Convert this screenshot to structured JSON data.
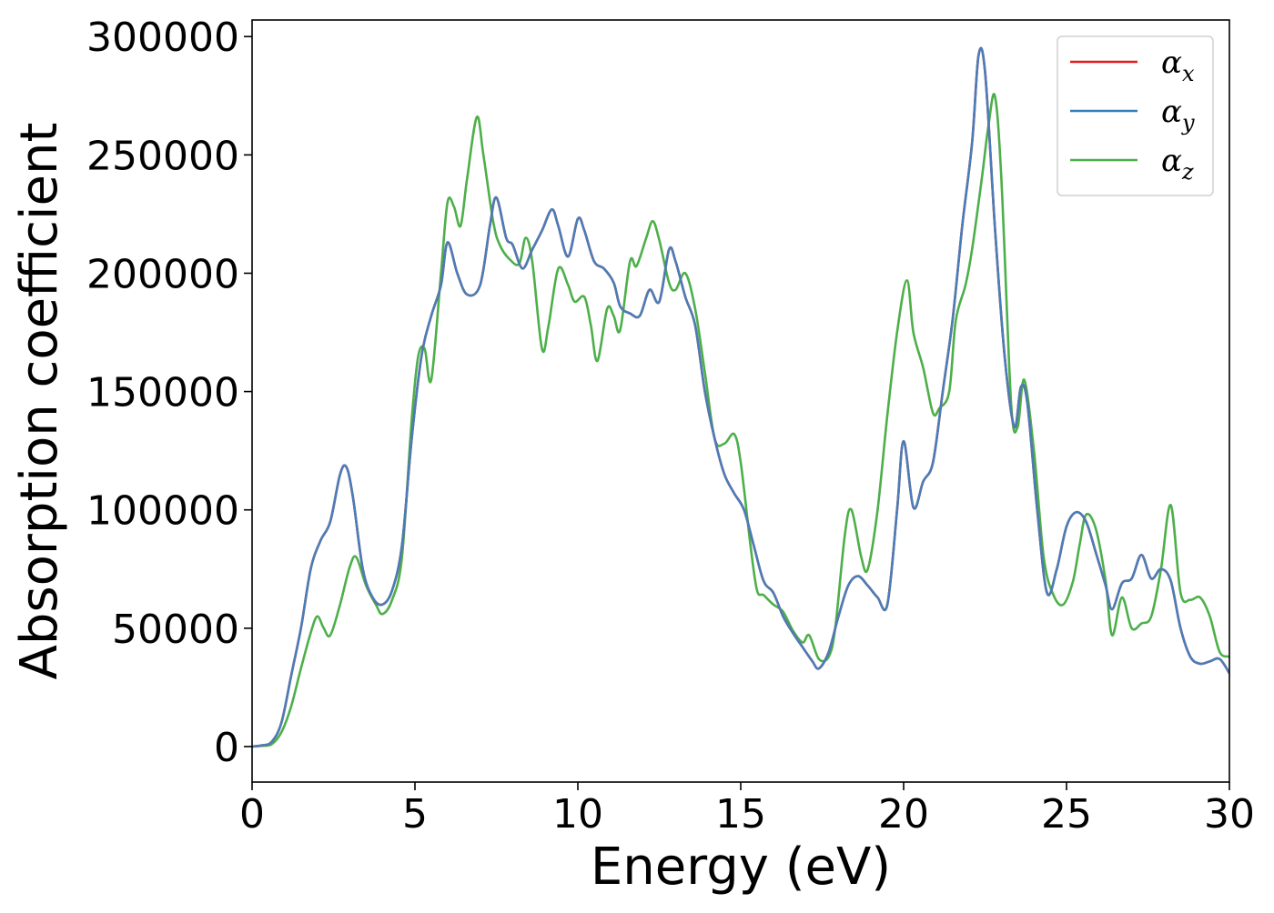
{
  "chart_data": {
    "type": "line",
    "xlabel": "Energy (eV)",
    "ylabel": "Absorption coefficient",
    "xlim": [
      0,
      30
    ],
    "ylim": [
      -15000,
      307000
    ],
    "xticks": [
      0,
      5,
      10,
      15,
      20,
      25,
      30
    ],
    "yticks": [
      0,
      50000,
      100000,
      150000,
      200000,
      250000,
      300000
    ],
    "grid": false,
    "legend_position": "top-right",
    "legend": [
      {
        "symbol": "α",
        "subscript": "x",
        "color": "#e41a1c"
      },
      {
        "symbol": "α",
        "subscript": "y",
        "color": "#377eb8"
      },
      {
        "symbol": "α",
        "subscript": "z",
        "color": "#4daf4a"
      }
    ],
    "series": [
      {
        "color": "#e41a1c",
        "x": [
          0,
          0.3,
          0.6,
          0.9,
          1.2,
          1.5,
          1.8,
          2.1,
          2.4,
          2.7,
          2.9,
          3.1,
          3.4,
          3.7,
          4.0,
          4.3,
          4.6,
          4.9,
          5.2,
          5.5,
          5.8,
          6.0,
          6.3,
          6.6,
          7.0,
          7.3,
          7.5,
          7.8,
          8.0,
          8.3,
          8.6,
          8.9,
          9.2,
          9.4,
          9.7,
          10.0,
          10.2,
          10.5,
          10.8,
          11.1,
          11.3,
          11.6,
          11.9,
          12.2,
          12.5,
          12.8,
          13.0,
          13.3,
          13.6,
          13.9,
          14.2,
          14.5,
          14.8,
          15.1,
          15.4,
          15.7,
          16.0,
          16.3,
          16.6,
          16.9,
          17.2,
          17.4,
          17.7,
          18.0,
          18.3,
          18.6,
          18.9,
          19.2,
          19.5,
          19.8,
          20.0,
          20.3,
          20.6,
          20.9,
          21.2,
          21.5,
          21.8,
          22.1,
          22.3,
          22.5,
          22.8,
          23.1,
          23.4,
          23.6,
          23.8,
          24.1,
          24.4,
          24.7,
          25.0,
          25.3,
          25.6,
          25.9,
          26.2,
          26.4,
          26.7,
          27.0,
          27.3,
          27.6,
          27.9,
          28.2,
          28.5,
          28.8,
          29.1,
          29.4,
          29.7,
          30.0
        ],
        "values": [
          0,
          500,
          2000,
          10000,
          30000,
          50000,
          75000,
          87000,
          95000,
          115000,
          118000,
          105000,
          75000,
          63000,
          60000,
          66000,
          85000,
          130000,
          165000,
          182000,
          195000,
          213000,
          200000,
          191000,
          195000,
          220000,
          232000,
          215000,
          212000,
          202000,
          210000,
          218000,
          227000,
          220000,
          207000,
          223000,
          218000,
          205000,
          202000,
          196000,
          186000,
          183000,
          182000,
          193000,
          188000,
          210000,
          205000,
          190000,
          178000,
          150000,
          130000,
          115000,
          107000,
          100000,
          85000,
          70000,
          65000,
          55000,
          48000,
          42000,
          36000,
          33000,
          40000,
          55000,
          68000,
          72000,
          68000,
          63000,
          60000,
          100000,
          129000,
          101000,
          112000,
          120000,
          150000,
          180000,
          220000,
          255000,
          292000,
          285000,
          220000,
          165000,
          135000,
          152000,
          145000,
          100000,
          65000,
          75000,
          93000,
          99000,
          95000,
          82000,
          68000,
          58000,
          69000,
          71000,
          81000,
          71000,
          75000,
          70000,
          50000,
          38000,
          35000,
          36000,
          37000,
          31000
        ]
      },
      {
        "color": "#4a7db8",
        "x": [
          0,
          0.3,
          0.6,
          0.9,
          1.2,
          1.5,
          1.8,
          2.1,
          2.4,
          2.7,
          2.9,
          3.1,
          3.4,
          3.7,
          4.0,
          4.3,
          4.6,
          4.9,
          5.2,
          5.5,
          5.8,
          6.0,
          6.3,
          6.6,
          7.0,
          7.3,
          7.5,
          7.8,
          8.0,
          8.3,
          8.6,
          8.9,
          9.2,
          9.4,
          9.7,
          10.0,
          10.2,
          10.5,
          10.8,
          11.1,
          11.3,
          11.6,
          11.9,
          12.2,
          12.5,
          12.8,
          13.0,
          13.3,
          13.6,
          13.9,
          14.2,
          14.5,
          14.8,
          15.1,
          15.4,
          15.7,
          16.0,
          16.3,
          16.6,
          16.9,
          17.2,
          17.4,
          17.7,
          18.0,
          18.3,
          18.6,
          18.9,
          19.2,
          19.5,
          19.8,
          20.0,
          20.3,
          20.6,
          20.9,
          21.2,
          21.5,
          21.8,
          22.1,
          22.3,
          22.5,
          22.8,
          23.1,
          23.4,
          23.6,
          23.8,
          24.1,
          24.4,
          24.7,
          25.0,
          25.3,
          25.6,
          25.9,
          26.2,
          26.4,
          26.7,
          27.0,
          27.3,
          27.6,
          27.9,
          28.2,
          28.5,
          28.8,
          29.1,
          29.4,
          29.7,
          30.0
        ],
        "values": [
          0,
          500,
          2000,
          10000,
          30000,
          50000,
          75000,
          87000,
          95000,
          115000,
          118000,
          105000,
          75000,
          63000,
          60000,
          66000,
          85000,
          130000,
          165000,
          182000,
          195000,
          213000,
          200000,
          191000,
          195000,
          220000,
          232000,
          215000,
          212000,
          202000,
          210000,
          218000,
          227000,
          220000,
          207000,
          223000,
          218000,
          205000,
          202000,
          196000,
          186000,
          183000,
          182000,
          193000,
          188000,
          210000,
          205000,
          190000,
          178000,
          150000,
          130000,
          115000,
          107000,
          100000,
          85000,
          70000,
          65000,
          55000,
          48000,
          42000,
          36000,
          33000,
          40000,
          55000,
          68000,
          72000,
          68000,
          63000,
          60000,
          100000,
          129000,
          101000,
          112000,
          120000,
          150000,
          180000,
          220000,
          255000,
          292000,
          285000,
          220000,
          165000,
          135000,
          152000,
          145000,
          100000,
          65000,
          75000,
          93000,
          99000,
          95000,
          82000,
          68000,
          58000,
          69000,
          71000,
          81000,
          71000,
          75000,
          70000,
          50000,
          38000,
          35000,
          36000,
          37000,
          31000
        ]
      },
      {
        "color": "#4daf4a",
        "x": [
          0,
          0.3,
          0.6,
          0.9,
          1.2,
          1.5,
          1.8,
          2.0,
          2.2,
          2.4,
          2.7,
          3.0,
          3.2,
          3.5,
          3.8,
          4.0,
          4.3,
          4.6,
          4.9,
          5.1,
          5.3,
          5.5,
          5.8,
          6.0,
          6.2,
          6.4,
          6.6,
          6.9,
          7.1,
          7.4,
          7.6,
          7.9,
          8.2,
          8.4,
          8.6,
          8.9,
          9.1,
          9.4,
          9.7,
          9.9,
          10.2,
          10.4,
          10.6,
          10.9,
          11.1,
          11.3,
          11.6,
          11.8,
          12.1,
          12.3,
          12.5,
          12.8,
          13.0,
          13.3,
          13.6,
          13.9,
          14.2,
          14.5,
          14.8,
          15.0,
          15.3,
          15.5,
          15.7,
          16.0,
          16.3,
          16.6,
          16.9,
          17.1,
          17.4,
          17.7,
          17.9,
          18.2,
          18.4,
          18.7,
          18.9,
          19.2,
          19.5,
          19.8,
          20.1,
          20.3,
          20.6,
          20.9,
          21.1,
          21.4,
          21.6,
          21.9,
          22.1,
          22.4,
          22.6,
          22.8,
          23.0,
          23.3,
          23.5,
          23.7,
          24.0,
          24.3,
          24.6,
          24.9,
          25.2,
          25.4,
          25.6,
          25.9,
          26.2,
          26.4,
          26.7,
          27.0,
          27.3,
          27.6,
          27.9,
          28.2,
          28.5,
          28.8,
          29.1,
          29.4,
          29.7,
          30.0
        ],
        "values": [
          0,
          300,
          1000,
          6000,
          17000,
          33000,
          48000,
          55000,
          50000,
          47000,
          60000,
          76000,
          80000,
          68000,
          60000,
          56000,
          62000,
          80000,
          138000,
          165000,
          168000,
          155000,
          200000,
          230000,
          228000,
          220000,
          240000,
          266000,
          250000,
          222000,
          212000,
          206000,
          204000,
          215000,
          205000,
          168000,
          178000,
          202000,
          195000,
          188000,
          190000,
          178000,
          163000,
          185000,
          182000,
          176000,
          205000,
          203000,
          215000,
          222000,
          214000,
          196000,
          193000,
          200000,
          185000,
          158000,
          130000,
          128000,
          132000,
          120000,
          85000,
          66000,
          64000,
          60000,
          57000,
          49000,
          44000,
          47000,
          37000,
          38000,
          50000,
          90000,
          100000,
          80000,
          75000,
          100000,
          140000,
          175000,
          197000,
          175000,
          160000,
          141000,
          143000,
          150000,
          180000,
          195000,
          210000,
          240000,
          262000,
          275000,
          240000,
          145000,
          135000,
          155000,
          125000,
          80000,
          64000,
          60000,
          70000,
          85000,
          98000,
          92000,
          70000,
          47000,
          63000,
          50000,
          52000,
          55000,
          75000,
          102000,
          65000,
          62000,
          63000,
          55000,
          40000,
          38000
        ]
      }
    ]
  }
}
